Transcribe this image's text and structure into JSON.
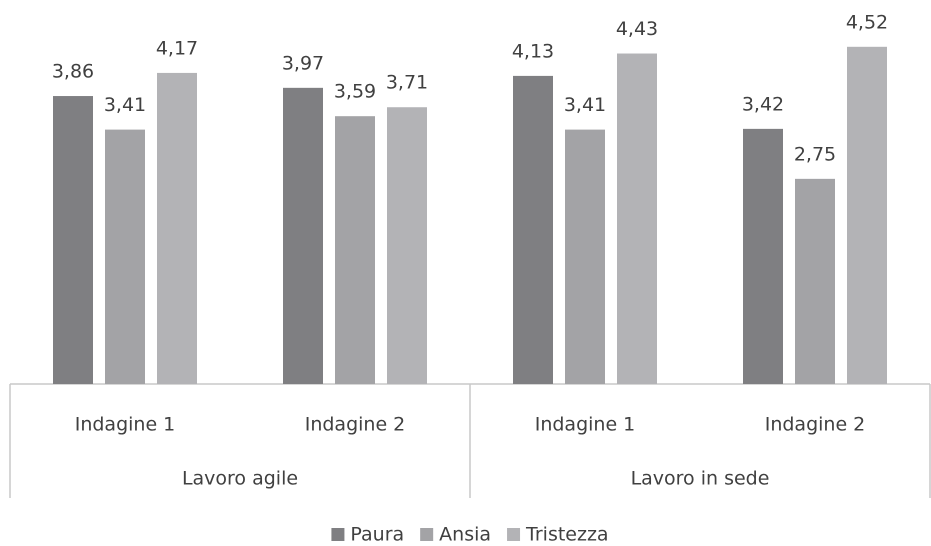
{
  "chart_data": {
    "type": "bar",
    "groups": [
      {
        "name": "Lavoro agile",
        "categories": [
          "Indagine 1",
          "Indagine 2"
        ]
      },
      {
        "name": "Lavoro in sede",
        "categories": [
          "Indagine 1",
          "Indagine 2"
        ]
      }
    ],
    "series": [
      {
        "name": "Paura",
        "color": "#7f7f82",
        "values": [
          3.86,
          3.97,
          4.13,
          3.42
        ],
        "value_labels": [
          "3,86",
          "3,97",
          "4,13",
          "3,42"
        ]
      },
      {
        "name": "Ansia",
        "color": "#a3a3a6",
        "values": [
          3.41,
          3.59,
          3.41,
          2.75
        ],
        "value_labels": [
          "3,41",
          "3,59",
          "3,41",
          "2,75"
        ]
      },
      {
        "name": "Tristezza",
        "color": "#b3b3b6",
        "values": [
          4.17,
          3.71,
          4.43,
          4.52
        ],
        "value_labels": [
          "4,17",
          "3,71",
          "4,43",
          "4,52"
        ]
      }
    ],
    "legend": "bottom"
  }
}
